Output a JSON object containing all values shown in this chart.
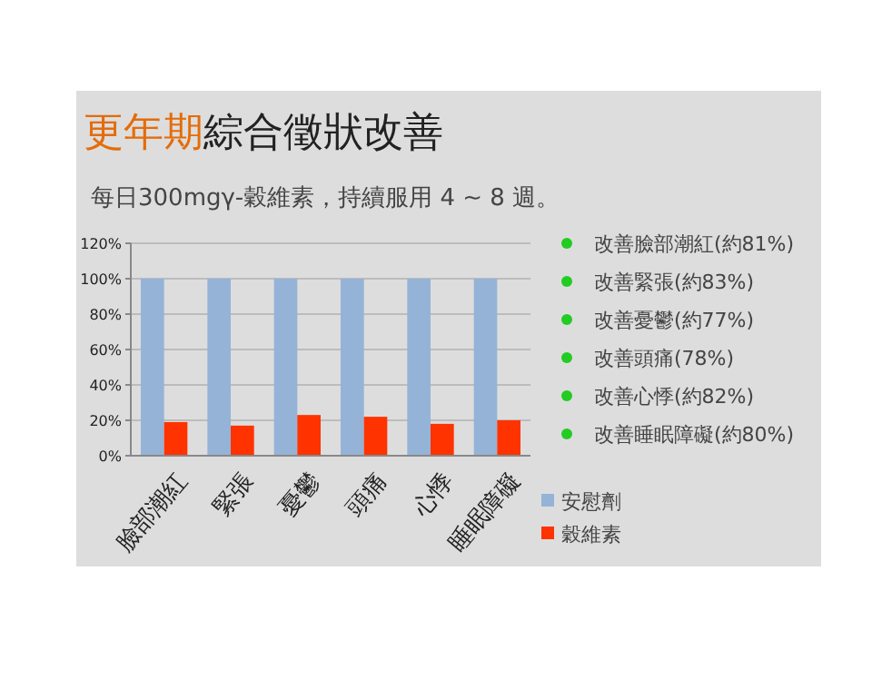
{
  "chart_data": {
    "type": "bar",
    "title": "更年期綜合徵狀改善",
    "subtitle": "每日300mgγ-穀維素，持續服用 4 ~ 8 週。",
    "categories": [
      "臉部潮紅",
      "緊張",
      "憂鬱",
      "頭痛",
      "心悸",
      "睡眠障礙"
    ],
    "series": [
      {
        "name": "安慰劑",
        "color": "#95b3d7",
        "values": [
          100,
          100,
          100,
          100,
          100,
          100
        ]
      },
      {
        "name": "穀維素",
        "color": "#ff3300",
        "values": [
          19,
          17,
          23,
          22,
          18,
          20
        ]
      }
    ],
    "ylim": [
      0,
      120
    ],
    "yticks": [
      {
        "value": 0,
        "label": "0%"
      },
      {
        "value": 20,
        "label": "20%"
      },
      {
        "value": 40,
        "label": "40%"
      },
      {
        "value": 60,
        "label": "60%"
      },
      {
        "value": 80,
        "label": "80%"
      },
      {
        "value": 100,
        "label": "100%"
      },
      {
        "value": 120,
        "label": "120%"
      }
    ],
    "grid": "y",
    "legend": "right",
    "annotations": [
      "改善臉部潮紅(約81%)",
      "改善緊張(約83%)",
      "改善憂鬱(約77%)",
      "改善頭痛(78%)",
      "改善心悸(約82%)",
      "改善睡眠障礙(約80%)"
    ]
  }
}
